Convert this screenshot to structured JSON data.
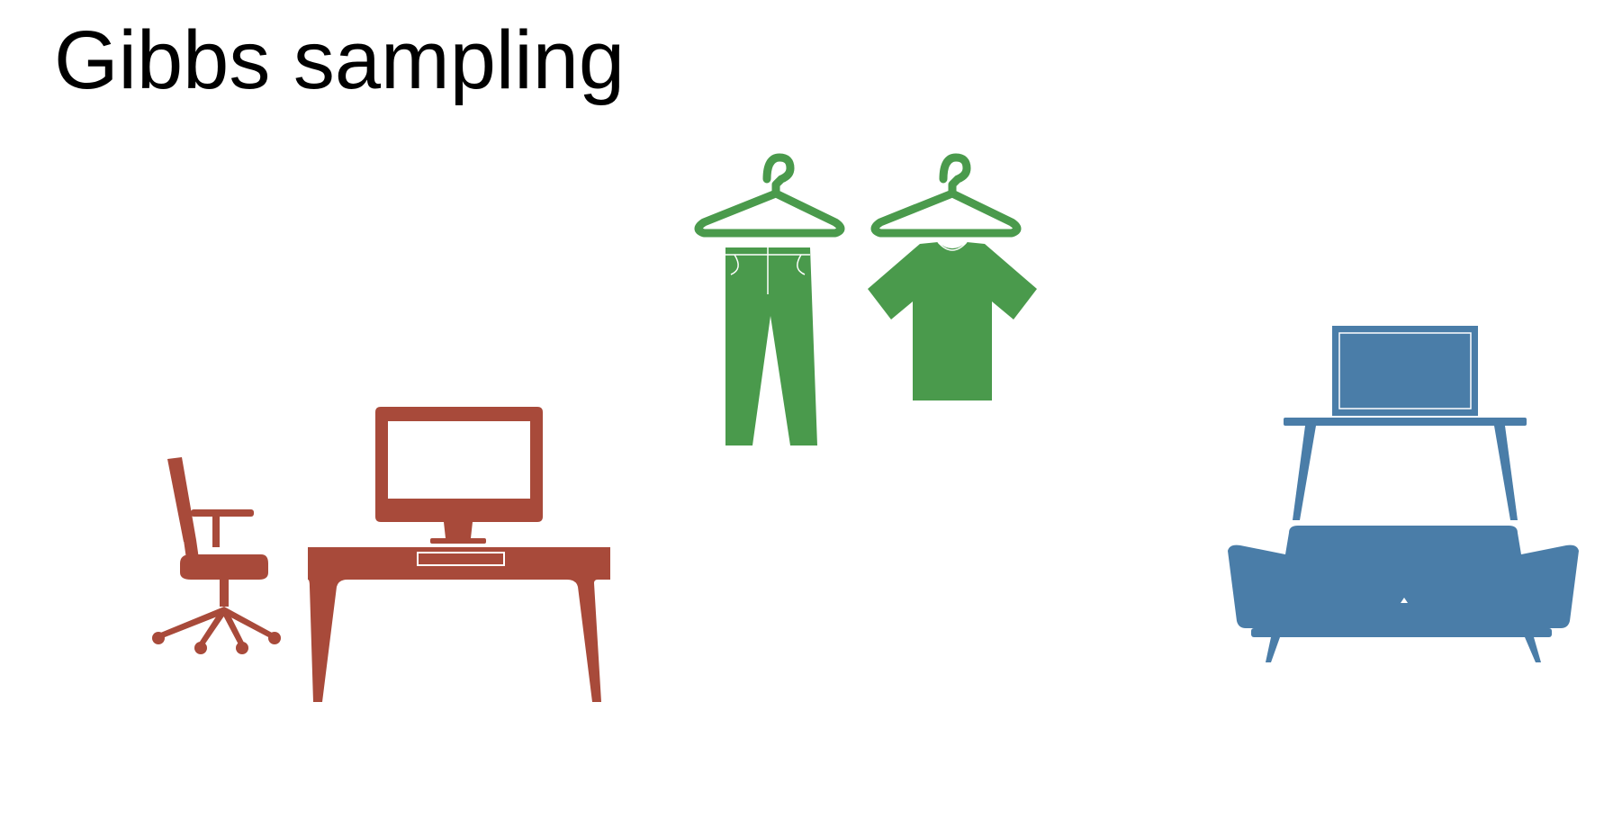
{
  "slide": {
    "title": "Gibbs sampling"
  },
  "colors": {
    "office": "#A84A3A",
    "clothing": "#4A9A4C",
    "living_room": "#4A7DA8",
    "title": "#000000",
    "background": "#FFFFFF"
  },
  "icons": {
    "office": [
      "office-chair-icon",
      "desk-icon",
      "computer-monitor-icon"
    ],
    "clothing": [
      "clothes-hanger-icon",
      "pants-icon",
      "t-shirt-icon"
    ],
    "living_room": [
      "sofa-icon",
      "coffee-table-icon",
      "television-icon"
    ]
  }
}
